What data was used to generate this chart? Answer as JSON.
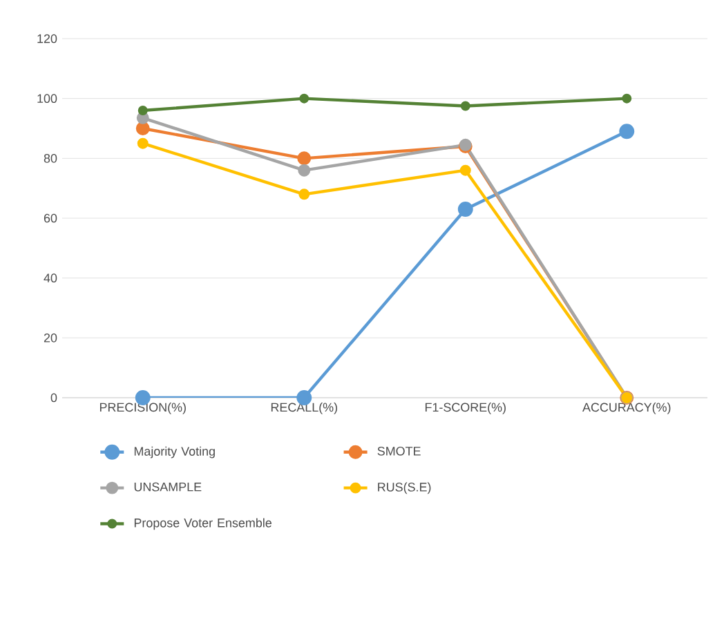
{
  "chart_data": {
    "type": "line",
    "categories": [
      "PRECISION(%)",
      "RECALL(%)",
      "F1-SCORE(%)",
      "ACCURACY(%)"
    ],
    "series": [
      {
        "name": "Majority Voting",
        "color": "#5b9bd5",
        "values": [
          0,
          0,
          63,
          89
        ]
      },
      {
        "name": "SMOTE",
        "color": "#ed7d31",
        "values": [
          90,
          80,
          84,
          0
        ]
      },
      {
        "name": "UNSAMPLE",
        "color": "#a5a5a5",
        "values": [
          93.5,
          76,
          84.5,
          0
        ]
      },
      {
        "name": "RUS(S.E)",
        "color": "#ffc000",
        "values": [
          85,
          68,
          76,
          0
        ]
      },
      {
        "name": "Propose Voter Ensemble",
        "color": "#548235",
        "values": [
          96,
          100,
          97.5,
          100
        ]
      }
    ],
    "ylim": [
      0,
      120
    ],
    "yticks": [
      0,
      20,
      40,
      60,
      80,
      100,
      120
    ],
    "grid": "y",
    "legend": "bottom",
    "marker": "circle",
    "line_style": "solid"
  }
}
